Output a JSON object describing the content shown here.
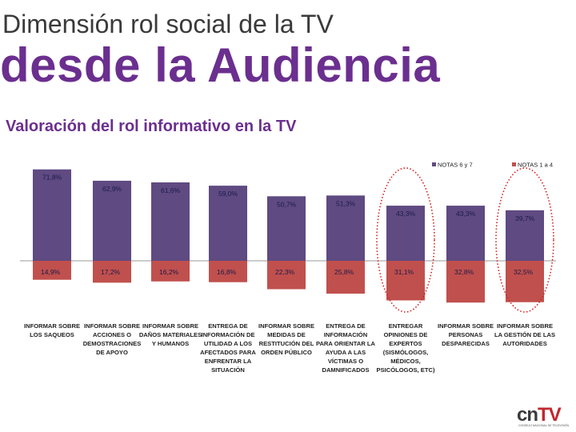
{
  "title_line1": "Dimensión rol social de la TV",
  "title_line2": "desde la Audiencia",
  "subtitle": "Valoración del rol informativo en la TV",
  "chart_data": {
    "type": "bar",
    "stacked_diverging": true,
    "title": "Valoración del rol informativo en la TV",
    "categories": [
      "INFORMAR SOBRE LOS SAQUEOS",
      "INFORMAR SOBRE ACCIONES O DEMOSTRACIONES DE APOYO",
      "INFORMAR SOBRE DAÑOS MATERIALES Y HUMANOS",
      "ENTREGA DE INFORMACIÓN DE UTILIDAD A LOS AFECTADOS PARA ENFRENTAR LA SITUACIÓN",
      "INFORMAR SOBRE MEDIDAS DE RESTITUCIÓN DEL ORDEN PÚBLICO",
      "ENTREGA DE INFORMACIÓN PARA ORIENTAR LA AYUDA A LAS VÍCTIMAS O DAMNIFICADOS",
      "ENTREGAR OPINIONES DE EXPERTOS (SISMÓLOGOS, MÉDICOS, PSICÓLOGOS, ETC)",
      "INFORMAR SOBRE PERSONAS DESPARECIDAS",
      "INFORMAR SOBRE LA GESTIÓN DE LAS AUTORIDADES"
    ],
    "category_lines": [
      [
        "INFORMAR SOBRE",
        "LOS SAQUEOS"
      ],
      [
        "INFORMAR SOBRE",
        "ACCIONES O",
        "DEMOSTRACIONES",
        "DE APOYO"
      ],
      [
        "INFORMAR SOBRE",
        "DAÑOS MATERIALES",
        "Y HUMANOS"
      ],
      [
        "ENTREGA DE",
        "INFORMACIÓN DE",
        "UTILIDAD A LOS",
        "AFECTADOS PARA",
        "ENFRENTAR LA",
        "SITUACIÓN"
      ],
      [
        "INFORMAR SOBRE",
        "MEDIDAS DE",
        "RESTITUCIÓN DEL",
        "ORDEN PÚBLICO"
      ],
      [
        "ENTREGA DE",
        "INFORMACIÓN",
        "PARA ORIENTAR LA",
        "AYUDA A LAS",
        "VÍCTIMAS O",
        "DAMNIFICADOS"
      ],
      [
        "ENTREGAR",
        "OPINIONES DE",
        "EXPERTOS",
        "(SISMÓLOGOS,",
        "MÉDICOS,",
        "PSICÓLOGOS, ETC)"
      ],
      [
        "INFORMAR SOBRE",
        "PERSONAS",
        "DESPARECIDAS"
      ],
      [
        "INFORMAR SOBRE",
        "LA GESTIÓN DE LAS",
        "AUTORIDADES"
      ]
    ],
    "series": [
      {
        "name": "NOTAS 6 y 7",
        "color": "#5f4a82",
        "values": [
          71.8,
          62.9,
          61.6,
          59.0,
          50.7,
          51.3,
          43.3,
          43.3,
          39.7
        ],
        "labels": [
          "71,8%",
          "62,9%",
          "61,6%",
          "59,0%",
          "50,7%",
          "51,3%",
          "43,3%",
          "43,3%",
          "39,7%"
        ]
      },
      {
        "name": "NOTAS 1 a 4",
        "color": "#c0504d",
        "values": [
          14.9,
          17.2,
          16.2,
          16.8,
          22.3,
          25.8,
          31.1,
          32.8,
          32.5
        ],
        "labels": [
          "14,9%",
          "17,2%",
          "16,2%",
          "16,8%",
          "22,3%",
          "25,8%",
          "31,1%",
          "32,8%",
          "32,5%"
        ]
      }
    ],
    "highlighted_categories": [
      6,
      8
    ],
    "highlight_color": "#d42020",
    "legend_position": "top-right"
  },
  "logo": {
    "text_c": "c",
    "text_n": "n",
    "text_tv": "TV",
    "tagline": "CONSEJO NACIONAL DE TELEVISIÓN",
    "color_dark": "#3a3a3a",
    "color_red": "#c2272d"
  }
}
